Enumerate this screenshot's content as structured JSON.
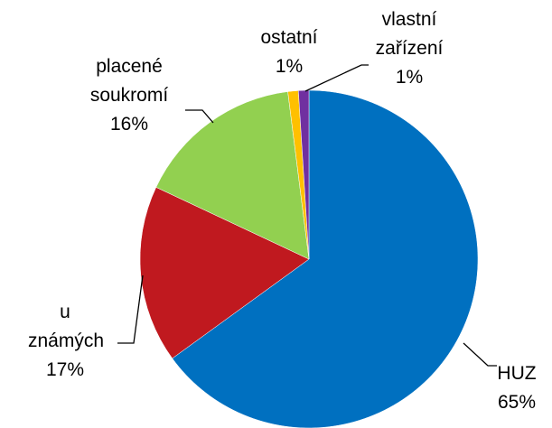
{
  "chart_data": {
    "type": "pie",
    "categories": [
      "HUZ",
      "u známých",
      "placené soukromí",
      "ostatní",
      "vlastní zařízení"
    ],
    "values": [
      65,
      17,
      16,
      1,
      1
    ],
    "value_labels": [
      "65%",
      "17%",
      "16%",
      "1%",
      "1%"
    ],
    "colors": [
      "#0070c0",
      "#c0191f",
      "#92d050",
      "#ffc000",
      "#7030a0"
    ]
  }
}
